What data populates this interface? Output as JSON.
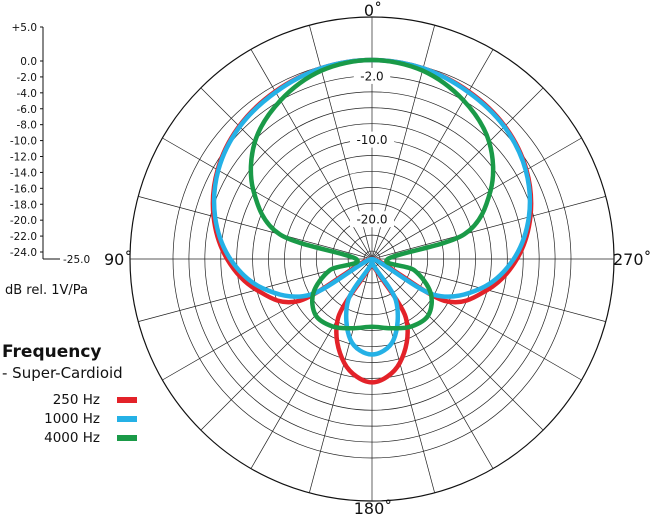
{
  "chart_data": {
    "type": "polar",
    "scale_labels": [
      "+5.0",
      "0.0",
      "-2.0",
      "-4.0",
      "-6.0",
      "-8.0",
      "-10.0",
      "-12.0",
      "-14.0",
      "-16.0",
      "-18.0",
      "-20.0",
      "-22.0",
      "-24.0",
      "-25.0"
    ],
    "rlim": [
      -25,
      0
    ],
    "ring_labels": [
      "-2.0",
      "-10.0",
      "-20.0"
    ],
    "angle_labels": {
      "top": "0˚",
      "left": "90˚",
      "right": "270˚",
      "bottom": "180˚"
    },
    "units_label": "dB rel. 1V/Pa",
    "legend": {
      "title": "Frequency",
      "subtitle": "- Super-Cardioid"
    },
    "series": [
      {
        "name": "250 Hz",
        "color": "#e32229",
        "angles": [
          0,
          15,
          30,
          45,
          60,
          75,
          90,
          105,
          120,
          135,
          150,
          165,
          180
        ],
        "values": [
          0,
          -0.2,
          -0.7,
          -1.4,
          -2.6,
          -4.4,
          -6.8,
          -10.0,
          -14.5,
          -25.0,
          -16.5,
          -11.5,
          -9.5
        ]
      },
      {
        "name": "1000 Hz",
        "color": "#25b1e6",
        "angles": [
          0,
          15,
          30,
          45,
          60,
          75,
          90,
          105,
          120,
          135,
          150,
          165,
          180
        ],
        "values": [
          0,
          -0.2,
          -0.8,
          -1.5,
          -2.7,
          -4.6,
          -7.2,
          -10.8,
          -16.0,
          -25.0,
          -19.0,
          -14.5,
          -13.0
        ]
      },
      {
        "name": "4000 Hz",
        "color": "#1a9a48",
        "angles": [
          0,
          15,
          30,
          45,
          60,
          75,
          90,
          105,
          120,
          135,
          150,
          165,
          180
        ],
        "values": [
          0,
          -0.5,
          -2.0,
          -4.2,
          -7.8,
          -13.0,
          -23.0,
          -19.5,
          -16.5,
          -15.0,
          -15.2,
          -16.0,
          -16.5
        ]
      }
    ]
  }
}
